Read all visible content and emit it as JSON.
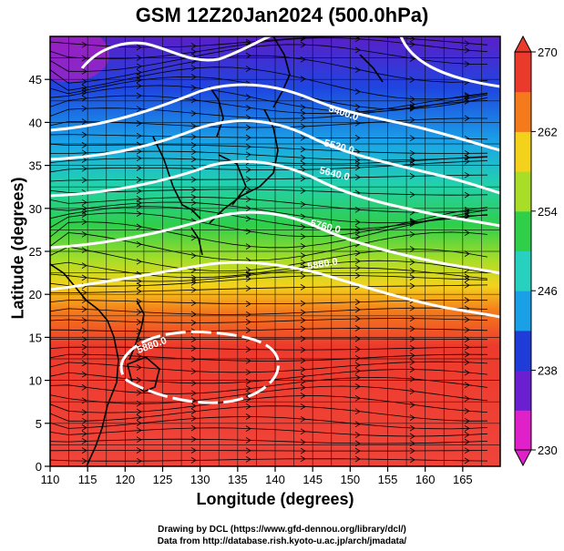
{
  "title": "GSM 12Z20Jan2024 (500.0hPa)",
  "x_axis": {
    "label": "Longitude (degrees)",
    "ticks": [
      "110",
      "115",
      "120",
      "125",
      "130",
      "135",
      "140",
      "145",
      "150",
      "155",
      "160",
      "165"
    ]
  },
  "y_axis": {
    "label": "Latitude  (degrees)",
    "ticks": [
      "0",
      "5",
      "10",
      "15",
      "20",
      "25",
      "30",
      "35",
      "40",
      "45"
    ]
  },
  "colorbar": {
    "ticks": [
      "230",
      "238",
      "246",
      "254",
      "262",
      "270"
    ],
    "min": 230,
    "max": 270,
    "colors": [
      "#e020c8",
      "#6a1fd0",
      "#1f3bd8",
      "#1aa0e6",
      "#28d0c0",
      "#2fcf4a",
      "#a8de28",
      "#f4d21c",
      "#f47a1c",
      "#ea3a2c"
    ]
  },
  "contour_labels": [
    "5400.0",
    "5520.0",
    "5640.0",
    "5760.0",
    "5880.0",
    "5880.0"
  ],
  "credits": {
    "line1": "Drawing by DCL (https://www.gfd-dennou.org/library/dcl/)",
    "line2": "Data from http://database.rish.kyoto-u.ac.jp/arch/jmadata/"
  }
}
